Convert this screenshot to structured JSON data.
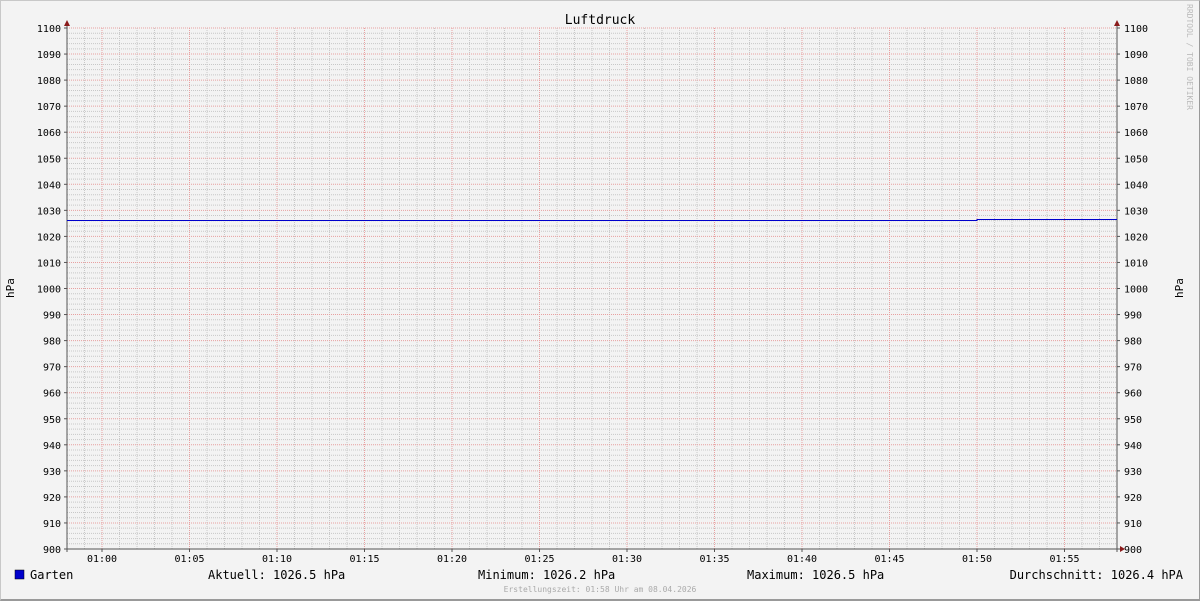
{
  "chart_data": {
    "type": "line",
    "title": "Luftdruck",
    "ylabel": "hPa",
    "ylabel_right": "hPa",
    "ylim": [
      900,
      1100
    ],
    "y_ticks": [
      900,
      910,
      920,
      930,
      940,
      950,
      960,
      970,
      980,
      990,
      1000,
      1010,
      1020,
      1030,
      1040,
      1050,
      1060,
      1070,
      1080,
      1090,
      1100
    ],
    "y_minor_step": 2,
    "x_range": [
      "00:58",
      "01:58"
    ],
    "x_ticks": [
      "01:00",
      "01:05",
      "01:10",
      "01:15",
      "01:20",
      "01:25",
      "01:30",
      "01:35",
      "01:40",
      "01:45",
      "01:50",
      "01:55"
    ],
    "x_minor_step_minutes": 1,
    "grid": true,
    "series": [
      {
        "name": "Garten",
        "color": "#0000cc",
        "x": [
          "00:58",
          "01:50",
          "01:50",
          "01:58"
        ],
        "values": [
          1026.2,
          1026.2,
          1026.5,
          1026.5
        ]
      }
    ],
    "legend": {
      "placement": "bottom",
      "name": "Garten",
      "current": "Aktuell: 1026.5 hPa",
      "minimum": "Minimum: 1026.2 hPa",
      "maximum": "Maximum: 1026.5 hPa",
      "average": "Durchschnitt: 1026.4 hPA"
    },
    "footer": "Erstellungszeit: 01:58 Uhr am 08.04.2026",
    "watermark": "RRDTOOL / TOBI OETIKER",
    "colors": {
      "major_grid": "#e8a0a0",
      "minor_grid": "#c8c8c8",
      "axis": "#555555",
      "arrow": "#8b1a1a"
    }
  }
}
